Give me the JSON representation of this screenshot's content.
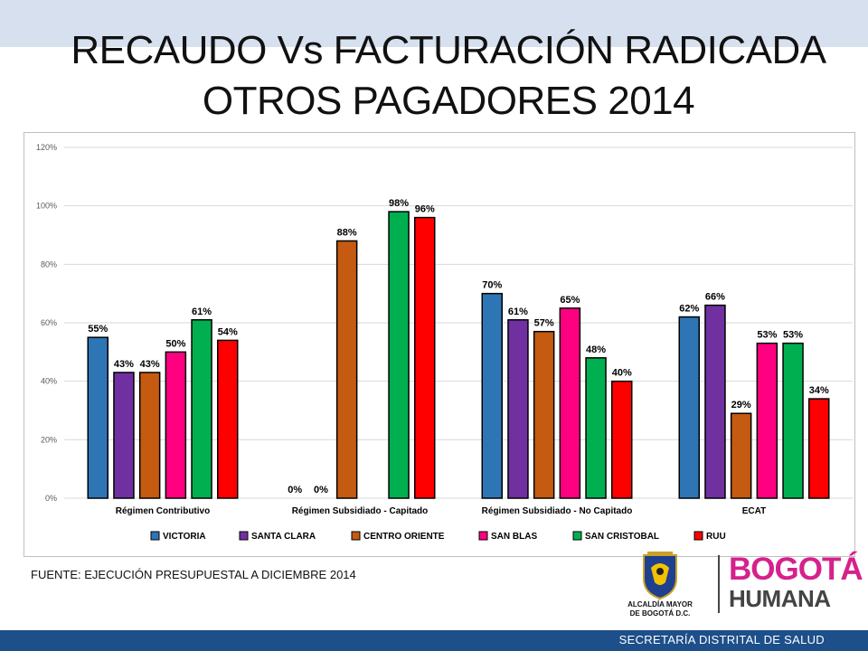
{
  "slide": {
    "title_line1": "RECAUDO Vs FACTURACIÓN RADICADA",
    "title_line2": "OTROS PAGADORES 2014",
    "source": "FUENTE: EJECUCIÓN PRESUPUESTAL A DICIEMBRE 2014",
    "footer": "SECRETARÍA DISTRITAL DE SALUD",
    "logo_alcaldia_line1": "ALCALDÍA MAYOR",
    "logo_alcaldia_line2": "DE BOGOTÁ D.C.",
    "logo_bogota_line1": "BOGOTÁ",
    "logo_bogota_line2": "HUMANA"
  },
  "chart_data": {
    "type": "bar",
    "categories": [
      "Régimen Contributivo",
      "Régimen Subsidiado - Capitado",
      "Régimen Subsidiado - No Capitado",
      "ECAT"
    ],
    "series": [
      {
        "name": "VICTORIA",
        "color": "#2e75b6",
        "values": [
          55,
          0,
          70,
          62
        ]
      },
      {
        "name": "SANTA CLARA",
        "color": "#7030a0",
        "values": [
          43,
          0,
          61,
          66
        ]
      },
      {
        "name": "CENTRO ORIENTE",
        "color": "#c55a11",
        "values": [
          43,
          88,
          57,
          29
        ]
      },
      {
        "name": "SAN BLAS",
        "color": "#ff0080",
        "values": [
          50,
          null,
          65,
          53
        ]
      },
      {
        "name": "SAN CRISTOBAL",
        "color": "#00b050",
        "values": [
          61,
          98,
          48,
          53
        ]
      },
      {
        "name": "RUU",
        "color": "#ff0000",
        "values": [
          54,
          96,
          40,
          34
        ]
      }
    ],
    "ylim": [
      0,
      120
    ],
    "yticks": [
      "0%",
      "20%",
      "40%",
      "60%",
      "80%",
      "100%",
      "120%"
    ],
    "grid": true,
    "legend_position": "bottom",
    "value_suffix": "%"
  }
}
